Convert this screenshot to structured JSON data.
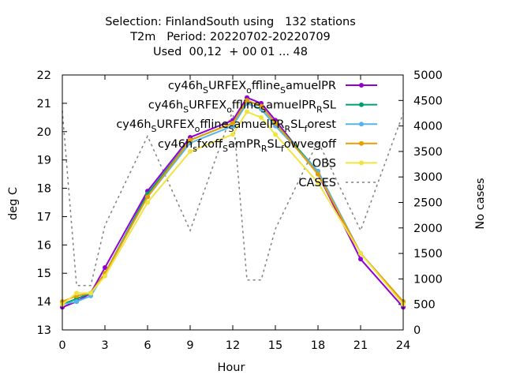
{
  "chart_data": {
    "type": "line",
    "title_lines": [
      "Selection: FinlandSouth using   132 stations",
      "T2m   Period: 20220702-20220709",
      "Used  00,12  + 00 01 ... 48"
    ],
    "xlabel": "Hour",
    "ylabel": "deg C",
    "y2label": "No cases",
    "xlim": [
      0,
      24
    ],
    "ylim": [
      13,
      22
    ],
    "y2lim": [
      0,
      5000
    ],
    "xticks": [
      0,
      3,
      6,
      9,
      12,
      15,
      18,
      21,
      24
    ],
    "yticks": [
      13,
      14,
      15,
      16,
      17,
      18,
      19,
      20,
      21,
      22
    ],
    "y2ticks": [
      0,
      500,
      1000,
      1500,
      2000,
      2500,
      3000,
      3500,
      4000,
      4500,
      5000
    ],
    "grid": false,
    "legend_position": "top-right",
    "x": [
      0,
      1,
      2,
      3,
      6,
      9,
      12,
      13,
      14,
      15,
      18,
      21,
      24
    ],
    "series": [
      {
        "legend_parts": [
          [
            "cy46h",
            ""
          ],
          [
            "S",
            "sub"
          ],
          [
            "URFEX",
            ""
          ],
          [
            "o",
            "sub"
          ],
          [
            "ffline",
            ""
          ],
          [
            "S",
            "sub"
          ],
          [
            "amuelPR",
            ""
          ]
        ],
        "color": "#9400d3",
        "values": [
          13.8,
          14.0,
          14.3,
          15.2,
          17.9,
          19.8,
          20.4,
          21.2,
          21.0,
          20.4,
          18.5,
          15.5,
          13.8
        ]
      },
      {
        "legend_parts": [
          [
            "cy46h",
            ""
          ],
          [
            "S",
            "sub"
          ],
          [
            "URFEX",
            ""
          ],
          [
            "o",
            "sub"
          ],
          [
            "ffline",
            ""
          ],
          [
            "S",
            "sub"
          ],
          [
            "amuelPR",
            ""
          ],
          [
            "R",
            "sub"
          ],
          [
            "SL",
            ""
          ]
        ],
        "color": "#009e73",
        "values": [
          13.9,
          14.1,
          14.3,
          15.0,
          17.8,
          19.7,
          20.3,
          21.1,
          20.9,
          20.3,
          18.6,
          15.7,
          14.0
        ]
      },
      {
        "legend_parts": [
          [
            "cy46h",
            ""
          ],
          [
            "S",
            "sub"
          ],
          [
            "URFEX",
            ""
          ],
          [
            "o",
            "sub"
          ],
          [
            "ffline",
            ""
          ],
          [
            "S",
            "sub"
          ],
          [
            "amuelPR",
            ""
          ],
          [
            "R",
            "sub"
          ],
          [
            "SL",
            ""
          ],
          [
            "f",
            "sub"
          ],
          [
            "orest",
            ""
          ]
        ],
        "color": "#56b4e9",
        "values": [
          13.9,
          14.0,
          14.2,
          15.0,
          17.7,
          19.6,
          20.2,
          21.0,
          20.8,
          20.2,
          18.6,
          15.7,
          14.0
        ]
      },
      {
        "legend_parts": [
          [
            "cy46h",
            ""
          ],
          [
            "s",
            "sub"
          ],
          [
            "fxoff",
            ""
          ],
          [
            "S",
            "sub"
          ],
          [
            "amPR",
            ""
          ],
          [
            "R",
            "sub"
          ],
          [
            "SL",
            ""
          ],
          [
            "f",
            "sub"
          ],
          [
            "owvegoff",
            ""
          ]
        ],
        "color": "#e69f00",
        "values": [
          14.0,
          14.2,
          14.3,
          15.0,
          17.7,
          19.7,
          20.3,
          21.1,
          20.9,
          20.3,
          18.5,
          15.7,
          14.0
        ]
      },
      {
        "legend_parts": [
          [
            "OBS",
            ""
          ]
        ],
        "color": "#f0e442",
        "values": [
          13.9,
          14.3,
          14.3,
          14.9,
          17.5,
          19.3,
          19.9,
          20.7,
          20.5,
          19.9,
          18.2,
          15.7,
          13.9
        ]
      }
    ],
    "cases": {
      "legend_parts": [
        [
          "CASES",
          ""
        ]
      ],
      "color": "#808080",
      "x": [
        0,
        1,
        2,
        3,
        6,
        9,
        12,
        13,
        14,
        15,
        18,
        21,
        24
      ],
      "values": [
        4300,
        870,
        870,
        2050,
        3800,
        1950,
        4300,
        980,
        980,
        1980,
        3700,
        1950,
        4250
      ]
    }
  }
}
